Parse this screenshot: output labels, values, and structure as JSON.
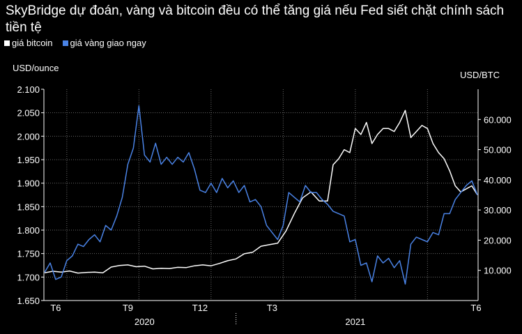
{
  "chart_data": {
    "type": "line",
    "title": "SkyBridge dự đoán, vàng và bitcoin đều có thể tăng giá nếu Fed siết chặt chính sách tiền tệ",
    "y_left_label": "USD/ounce",
    "y_right_label": "USD/BTC",
    "y_left_range": [
      1650,
      2100
    ],
    "y_right_range": [
      0,
      70000
    ],
    "y_left_ticks": [
      "2.100",
      "2.050",
      "2.000",
      "1.950",
      "1.900",
      "1.850",
      "1.800",
      "1.750",
      "1.700",
      "1.650"
    ],
    "y_right_ticks": [
      "60.000",
      "50.000",
      "40.000",
      "30.000",
      "20.000",
      "10.000"
    ],
    "x_tick_labels": [
      "T6",
      "T9",
      "T12",
      "T3",
      "T6"
    ],
    "x_year_labels": [
      "2020",
      "2021"
    ],
    "grid": true,
    "legend_position": "top-left",
    "series": [
      {
        "name": "giá bitcoin",
        "color": "#ffffff",
        "axis": "right",
        "x": [
          0,
          3,
          6,
          9,
          12,
          15,
          18,
          21,
          24,
          27,
          30,
          33,
          36,
          39,
          42,
          45,
          48,
          51,
          54,
          57,
          60,
          63,
          66,
          69,
          72,
          75,
          78,
          81,
          84,
          87,
          90,
          93,
          96,
          99,
          102,
          104,
          106,
          108,
          110,
          112,
          114,
          116,
          118,
          120,
          122,
          124,
          126,
          128,
          130,
          132,
          134,
          136,
          138,
          140,
          142,
          144,
          146,
          148,
          150,
          152,
          154,
          156
        ],
        "values": [
          9200,
          9700,
          9400,
          9800,
          9100,
          9300,
          9400,
          9200,
          11100,
          11600,
          11800,
          11200,
          11400,
          10500,
          10700,
          10600,
          11000,
          10900,
          11500,
          11800,
          11500,
          12300,
          13200,
          13800,
          15500,
          16000,
          18000,
          18500,
          19000,
          23000,
          28800,
          34000,
          36000,
          33000,
          33000,
          45000,
          47000,
          50000,
          49000,
          57000,
          55000,
          59000,
          52000,
          55000,
          57000,
          57000,
          56000,
          59000,
          63000,
          54000,
          56000,
          58000,
          57000,
          52000,
          49000,
          47000,
          43000,
          38000,
          36000,
          37000,
          38000,
          35000
        ]
      },
      {
        "name": "giá vàng giao ngay",
        "color": "#4a83e6",
        "axis": "left",
        "x": [
          0,
          2,
          4,
          6,
          8,
          10,
          12,
          14,
          16,
          18,
          20,
          22,
          24,
          26,
          28,
          30,
          32,
          34,
          36,
          38,
          40,
          42,
          44,
          46,
          48,
          50,
          52,
          54,
          56,
          58,
          60,
          62,
          64,
          66,
          68,
          70,
          72,
          74,
          76,
          78,
          80,
          82,
          84,
          86,
          88,
          90,
          92,
          94,
          96,
          98,
          100,
          102,
          104,
          106,
          108,
          110,
          112,
          114,
          116,
          118,
          120,
          122,
          124,
          126,
          128,
          130,
          132,
          134,
          136,
          138,
          140,
          142,
          144,
          146,
          148,
          150,
          152,
          154,
          156
        ],
        "values": [
          1710,
          1730,
          1695,
          1700,
          1735,
          1745,
          1770,
          1765,
          1780,
          1790,
          1775,
          1810,
          1800,
          1830,
          1870,
          1940,
          1975,
          2065,
          1960,
          1945,
          1985,
          1940,
          1955,
          1940,
          1955,
          1945,
          1965,
          1930,
          1885,
          1880,
          1900,
          1880,
          1910,
          1890,
          1905,
          1880,
          1895,
          1860,
          1865,
          1850,
          1810,
          1795,
          1780,
          1810,
          1880,
          1870,
          1860,
          1895,
          1880,
          1880,
          1865,
          1855,
          1840,
          1835,
          1830,
          1775,
          1780,
          1725,
          1730,
          1690,
          1745,
          1730,
          1740,
          1720,
          1735,
          1685,
          1770,
          1785,
          1780,
          1775,
          1795,
          1790,
          1835,
          1835,
          1865,
          1880,
          1895,
          1905,
          1875
        ]
      }
    ]
  }
}
